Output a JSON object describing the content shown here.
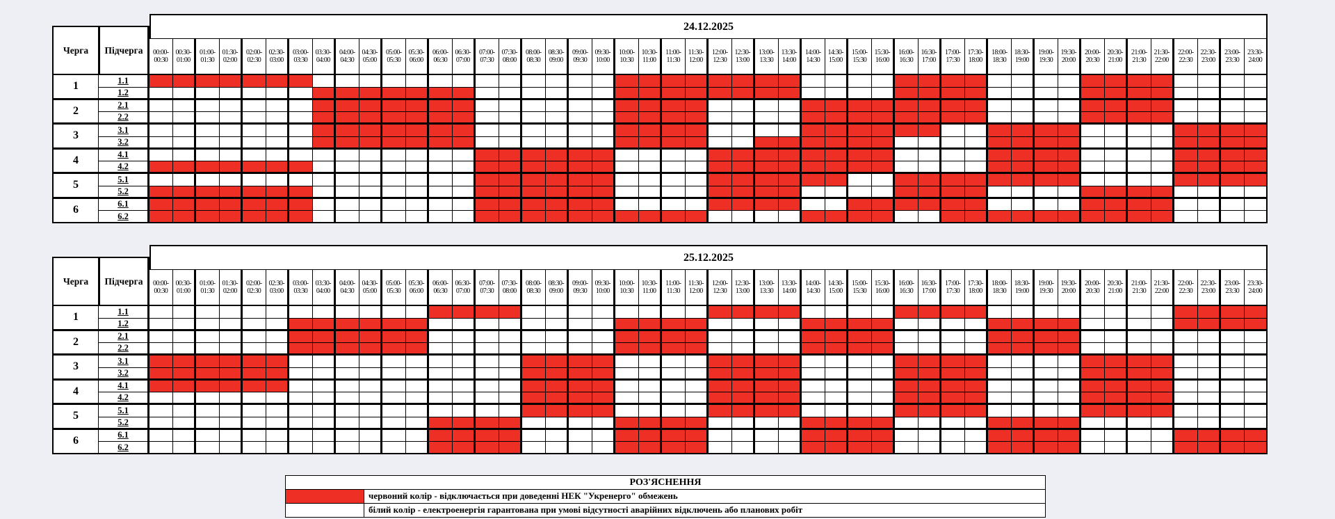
{
  "headers": {
    "queue": "Черга",
    "subqueue": "Підчерга"
  },
  "colors": {
    "outage_red": "#ee2f25",
    "cell_white": "#ffffff",
    "page_background": "#edeff5"
  },
  "time_slots": [
    {
      "f": "00:00",
      "t": "00:30"
    },
    {
      "f": "00:30",
      "t": "01:00"
    },
    {
      "f": "01:00",
      "t": "01:30"
    },
    {
      "f": "01:30",
      "t": "02:00"
    },
    {
      "f": "02:00",
      "t": "02:30"
    },
    {
      "f": "02:30",
      "t": "03:00"
    },
    {
      "f": "03:00",
      "t": "03:30"
    },
    {
      "f": "03:30",
      "t": "04:00"
    },
    {
      "f": "04:00",
      "t": "04:30"
    },
    {
      "f": "04:30",
      "t": "05:00"
    },
    {
      "f": "05:00",
      "t": "05:30"
    },
    {
      "f": "05:30",
      "t": "06:00"
    },
    {
      "f": "06:00",
      "t": "06:30"
    },
    {
      "f": "06:30",
      "t": "07:00"
    },
    {
      "f": "07:00",
      "t": "07:30"
    },
    {
      "f": "07:30",
      "t": "08:00"
    },
    {
      "f": "08:00",
      "t": "08:30"
    },
    {
      "f": "08:30",
      "t": "09:00"
    },
    {
      "f": "09:00",
      "t": "09:30"
    },
    {
      "f": "09:30",
      "t": "10:00"
    },
    {
      "f": "10:00",
      "t": "10:30"
    },
    {
      "f": "10:30",
      "t": "11:00"
    },
    {
      "f": "11:00",
      "t": "11:30"
    },
    {
      "f": "11:30",
      "t": "12:00"
    },
    {
      "f": "12:00",
      "t": "12:30"
    },
    {
      "f": "12:30",
      "t": "13:00"
    },
    {
      "f": "13:00",
      "t": "13:30"
    },
    {
      "f": "13:30",
      "t": "14:00"
    },
    {
      "f": "14:00",
      "t": "14:30"
    },
    {
      "f": "14:30",
      "t": "15:00"
    },
    {
      "f": "15:00",
      "t": "15:30"
    },
    {
      "f": "15:30",
      "t": "16:00"
    },
    {
      "f": "16:00",
      "t": "16:30"
    },
    {
      "f": "16:30",
      "t": "17:00"
    },
    {
      "f": "17:00",
      "t": "17:30"
    },
    {
      "f": "17:30",
      "t": "18:00"
    },
    {
      "f": "18:00",
      "t": "18:30"
    },
    {
      "f": "18:30",
      "t": "19:00"
    },
    {
      "f": "19:00",
      "t": "19:30"
    },
    {
      "f": "19:30",
      "t": "20:00"
    },
    {
      "f": "20:00",
      "t": "20:30"
    },
    {
      "f": "20:30",
      "t": "21:00"
    },
    {
      "f": "21:00",
      "t": "21:30"
    },
    {
      "f": "21:30",
      "t": "22:00"
    },
    {
      "f": "22:00",
      "t": "22:30"
    },
    {
      "f": "22:30",
      "t": "23:00"
    },
    {
      "f": "23:00",
      "t": "23:30"
    },
    {
      "f": "23:30",
      "t": "24:00"
    }
  ],
  "tables": [
    {
      "date": "24.12.2025",
      "rows": [
        {
          "queue": "1",
          "sub": "1.1",
          "cells": "111111100000000000001111111100001111000011110000"
        },
        {
          "queue": "1",
          "sub": "1.2",
          "cells": "000000011111110000001111111100001111000011110000"
        },
        {
          "queue": "2",
          "sub": "2.1",
          "cells": "000000011111110000001111000011111111000011110000"
        },
        {
          "queue": "2",
          "sub": "2.2",
          "cells": "000000011111110000001111000011111111000011110000"
        },
        {
          "queue": "3",
          "sub": "3.1",
          "cells": "000000011111110000001111000011111100111100001111"
        },
        {
          "queue": "3",
          "sub": "3.2",
          "cells": "000000011111110000001111001111110000111100001111"
        },
        {
          "queue": "4",
          "sub": "4.1",
          "cells": "000000000000001111110000111111110000111100001111"
        },
        {
          "queue": "4",
          "sub": "4.2",
          "cells": "111111100000001111110000111111110000111100001111"
        },
        {
          "queue": "5",
          "sub": "5.1",
          "cells": "000000000000001111110000111111001111111100001111"
        },
        {
          "queue": "5",
          "sub": "5.2",
          "cells": "111111100000001111110000111100001111000011110000"
        },
        {
          "queue": "6",
          "sub": "6.1",
          "cells": "111111100000001111110000111100111111000011110000"
        },
        {
          "queue": "6",
          "sub": "6.2",
          "cells": "111111100000001111111111000011110011111111110000"
        }
      ]
    },
    {
      "date": "25.12.2025",
      "rows": [
        {
          "queue": "1",
          "sub": "1.1",
          "cells": "000000000000111100000000111100001111000000001111"
        },
        {
          "queue": "1",
          "sub": "1.2",
          "cells": "000000111111000000001111000011110000111100001111"
        },
        {
          "queue": "2",
          "sub": "2.1",
          "cells": "000000111111000000001111000011110000111100000000"
        },
        {
          "queue": "2",
          "sub": "2.2",
          "cells": "000000111111000000001111000011110000111100000000"
        },
        {
          "queue": "3",
          "sub": "3.1",
          "cells": "111111000000000011110000111100001111000011110000"
        },
        {
          "queue": "3",
          "sub": "3.2",
          "cells": "111111000000000011110000111100001111000011110000"
        },
        {
          "queue": "4",
          "sub": "4.1",
          "cells": "111111000000000011110000111100001111000011110000"
        },
        {
          "queue": "4",
          "sub": "4.2",
          "cells": "000000000000000011110000111100001111000011110000"
        },
        {
          "queue": "5",
          "sub": "5.1",
          "cells": "000000000000000011110000111100001111000011110000"
        },
        {
          "queue": "5",
          "sub": "5.2",
          "cells": "000000000000111100001111000011110000111100000000"
        },
        {
          "queue": "6",
          "sub": "6.1",
          "cells": "000000000000111100001111000011110000111100001111"
        },
        {
          "queue": "6",
          "sub": "6.2",
          "cells": "000000000000111100001111000011110000111100001111"
        }
      ]
    }
  ],
  "legend": {
    "title": "РОЗ'ЯСНЕННЯ",
    "items": [
      {
        "swatch": "red",
        "text": "червоний колір - відключається при доведенні НЕК \"Укренерго\" обмежень"
      },
      {
        "swatch": "white",
        "text": "білий колір - електроенергія гарантована при умові відсутності аварійних відключень або планових робіт"
      }
    ]
  }
}
